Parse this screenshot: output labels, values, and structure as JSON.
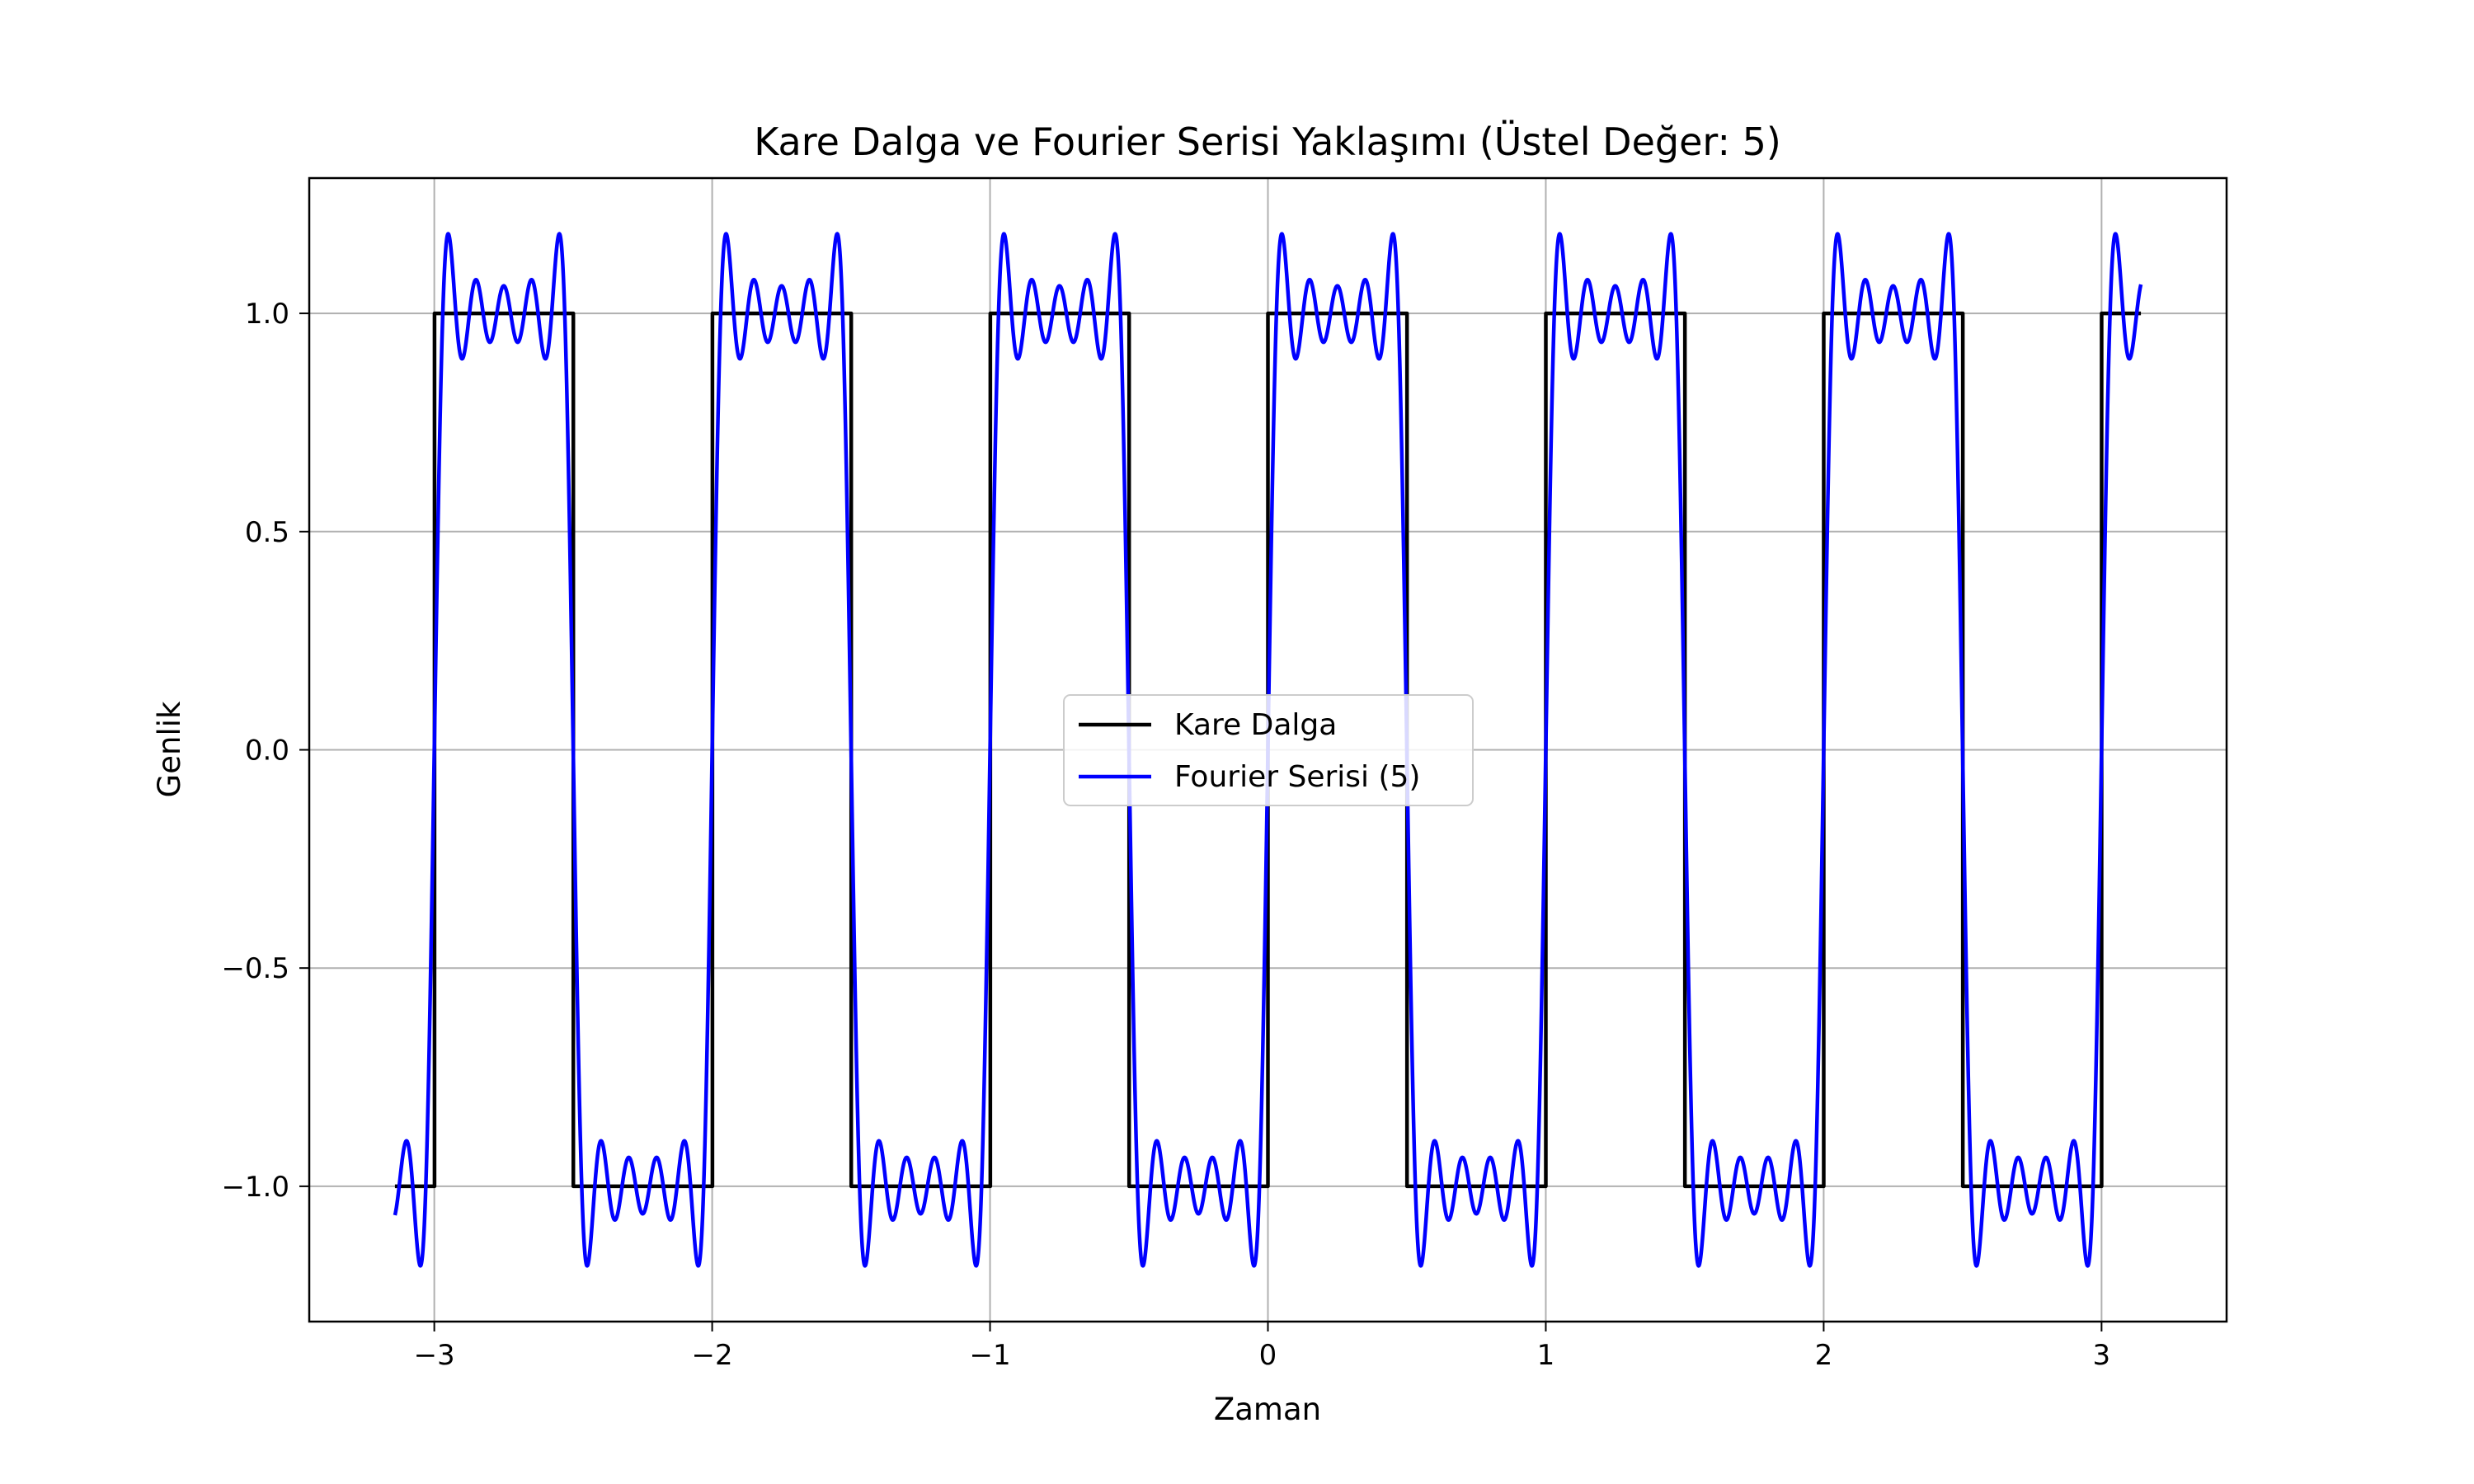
{
  "chart_data": {
    "type": "line",
    "title": "Kare Dalga ve Fourier Serisi Yaklaşımı (Üstel Değer: 5)",
    "xlabel": "Zaman",
    "ylabel": "Genlik",
    "xlim": [
      -3.45,
      3.45
    ],
    "ylim": [
      -1.31,
      1.31
    ],
    "x_ticks": [
      -3,
      -2,
      -1,
      0,
      1,
      2,
      3
    ],
    "x_tick_labels": [
      "−3",
      "−2",
      "−1",
      "0",
      "1",
      "2",
      "3"
    ],
    "y_ticks": [
      -1.0,
      -0.5,
      0.0,
      0.5,
      1.0
    ],
    "y_tick_labels": [
      "−1.0",
      "−0.5",
      "0.0",
      "0.5",
      "1.0"
    ],
    "grid": true,
    "legend_position": "center",
    "x_range": [
      -3.14159,
      3.14159
    ],
    "series": [
      {
        "name": "Kare Dalga",
        "color": "#000000",
        "kind": "square_wave",
        "frequency_hz": 1,
        "amplitude": 1
      },
      {
        "name": "Fourier Serisi (5)",
        "color": "#0000ff",
        "kind": "fourier_square_wave",
        "frequency_hz": 1,
        "harmonics": [
          1,
          3,
          5,
          7,
          9
        ]
      }
    ]
  }
}
